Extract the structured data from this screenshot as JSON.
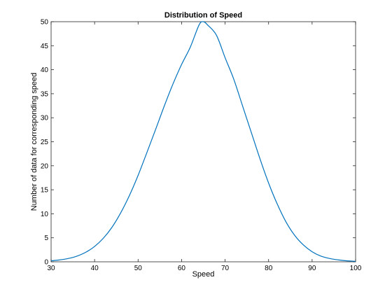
{
  "chart_data": {
    "type": "line",
    "title": "Distribution of Speed",
    "xlabel": "Speed",
    "ylabel": "Number of data for corresponding speed",
    "xlim": [
      30,
      100
    ],
    "ylim": [
      0,
      50
    ],
    "xticks": [
      30,
      40,
      50,
      60,
      70,
      80,
      90,
      100
    ],
    "yticks": [
      0,
      5,
      10,
      15,
      20,
      25,
      30,
      35,
      40,
      45,
      50
    ],
    "grid": false,
    "series": [
      {
        "color": "#0072bd",
        "x": [
          30,
          32,
          34,
          36,
          38,
          40,
          42,
          44,
          46,
          48,
          50,
          52,
          54,
          56,
          58,
          60,
          62,
          64,
          65,
          66,
          68,
          70,
          72,
          74,
          76,
          78,
          80,
          82,
          84,
          86,
          88,
          90,
          92,
          94,
          96,
          98,
          100
        ],
        "y": [
          0.2,
          0.4,
          0.7,
          1.2,
          2.0,
          3.2,
          4.9,
          7.2,
          10.2,
          13.8,
          18.0,
          22.7,
          27.5,
          32.4,
          37.0,
          41.1,
          44.7,
          49.3,
          50.0,
          49.3,
          47.2,
          42.5,
          38.0,
          32.5,
          27.0,
          21.5,
          16.4,
          12.0,
          8.3,
          5.5,
          3.5,
          2.1,
          1.2,
          0.7,
          0.4,
          0.2,
          0.1
        ]
      }
    ]
  }
}
